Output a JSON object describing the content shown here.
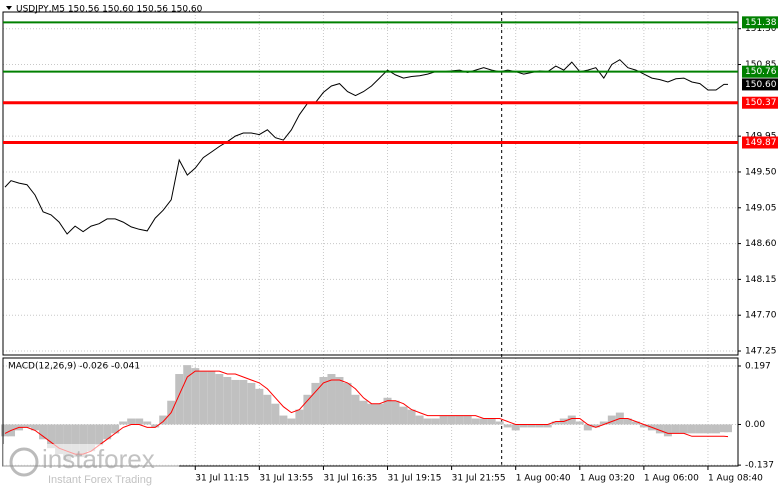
{
  "chart_data": [
    {
      "type": "line",
      "title": "USDJPY,M5  150.56 150.60 150.56 150.60",
      "color": "#000000",
      "grid": true,
      "xlim": [
        0,
        367
      ],
      "ylim": [
        147.2,
        151.51
      ],
      "yticks": [
        {
          "value": 151.3,
          "label": "151.30"
        },
        {
          "value": 150.85,
          "label": "150.85"
        },
        {
          "value": 149.95,
          "label": "149.95"
        },
        {
          "value": 149.5,
          "label": "149.50"
        },
        {
          "value": 149.05,
          "label": "149.05"
        },
        {
          "value": 148.6,
          "label": "148.60"
        },
        {
          "value": 148.15,
          "label": "148.15"
        },
        {
          "value": 147.7,
          "label": "147.70"
        },
        {
          "value": 147.25,
          "label": "147.25"
        }
      ],
      "separator_x": 249,
      "levels": [
        {
          "value": 151.38,
          "color": "#008000"
        },
        {
          "value": 150.76,
          "color": "#008000"
        },
        {
          "value": 150.37,
          "color": "#ff0000"
        },
        {
          "value": 149.87,
          "color": "#ff0000"
        }
      ],
      "last_price": {
        "value": 150.6,
        "label": "150.60"
      },
      "x": [
        1,
        4,
        8,
        12,
        16,
        20,
        24,
        28,
        32,
        36,
        40,
        44,
        48,
        52,
        56,
        60,
        64,
        68,
        72,
        76,
        80,
        84,
        88,
        92,
        96,
        100,
        104,
        108,
        112,
        116,
        120,
        124,
        128,
        132,
        136,
        140,
        144,
        148,
        152,
        156,
        160,
        164,
        168,
        172,
        176,
        180,
        184,
        188,
        192,
        196,
        200,
        204,
        208,
        212,
        216,
        220,
        224,
        228,
        232,
        236,
        240,
        244,
        248,
        252,
        256,
        260,
        264,
        268,
        272,
        276,
        280,
        284,
        288,
        292,
        296,
        300,
        304,
        308,
        312,
        316,
        320,
        324,
        328,
        332,
        336,
        340,
        344,
        348,
        352,
        356,
        360,
        362
      ],
      "values": [
        149.31,
        149.39,
        149.36,
        149.34,
        149.21,
        149.0,
        148.96,
        148.87,
        148.72,
        148.82,
        148.75,
        148.82,
        148.85,
        148.91,
        148.91,
        148.87,
        148.81,
        148.78,
        148.76,
        148.92,
        149.02,
        149.15,
        149.65,
        149.46,
        149.55,
        149.68,
        149.75,
        149.82,
        149.88,
        149.95,
        149.99,
        149.99,
        149.97,
        150.03,
        149.93,
        149.9,
        150.03,
        150.22,
        150.36,
        150.37,
        150.5,
        150.58,
        150.61,
        150.51,
        150.46,
        150.51,
        150.58,
        150.68,
        150.78,
        150.72,
        150.68,
        150.7,
        150.71,
        150.73,
        150.76,
        150.76,
        150.77,
        150.78,
        150.75,
        150.78,
        150.81,
        150.78,
        150.76,
        150.78,
        150.76,
        150.73,
        150.75,
        150.77,
        150.76,
        150.83,
        150.78,
        150.88,
        150.76,
        150.78,
        150.81,
        150.68,
        150.85,
        150.91,
        150.81,
        150.78,
        150.73,
        150.68,
        150.66,
        150.63,
        150.67,
        150.68,
        150.63,
        150.61,
        150.53,
        150.53,
        150.6,
        150.6
      ]
    },
    {
      "type": "combo",
      "title": "MACD(12,26,9) -0.026 -0.041",
      "grid": true,
      "xlim": [
        0,
        367
      ],
      "ylim": [
        -0.14,
        0.224
      ],
      "yticks": [
        0.197,
        {
          "value": 0,
          "label": "0.00"
        },
        -0.137
      ],
      "xticks": [
        {
          "value": 96,
          "label": "31 Jul 11:15"
        },
        {
          "value": 128,
          "label": "31 Jul 13:55"
        },
        {
          "value": 160,
          "label": "31 Jul 16:35"
        },
        {
          "value": 192,
          "label": "31 Jul 19:15"
        },
        {
          "value": 224,
          "label": "31 Jul 21:55"
        },
        {
          "value": 256,
          "label": "1 Aug 00:40"
        },
        {
          "value": 288,
          "label": "1 Aug 03:20"
        },
        {
          "value": 320,
          "label": "1 Aug 06:00"
        },
        {
          "value": 352,
          "label": "1 Aug 08:40"
        }
      ],
      "x": [
        1,
        4,
        8,
        12,
        16,
        20,
        24,
        28,
        32,
        36,
        40,
        44,
        48,
        52,
        56,
        60,
        64,
        68,
        72,
        76,
        80,
        84,
        88,
        92,
        96,
        100,
        104,
        108,
        112,
        116,
        120,
        124,
        128,
        132,
        136,
        140,
        144,
        148,
        152,
        156,
        160,
        164,
        168,
        172,
        176,
        180,
        184,
        188,
        192,
        196,
        200,
        204,
        208,
        212,
        216,
        220,
        224,
        228,
        232,
        236,
        240,
        244,
        248,
        252,
        256,
        260,
        264,
        268,
        272,
        276,
        280,
        284,
        288,
        292,
        296,
        300,
        304,
        308,
        312,
        316,
        320,
        324,
        328,
        332,
        336,
        340,
        344,
        348,
        352,
        356,
        360,
        362
      ],
      "series": [
        {
          "kind": "bar",
          "color": "#c0c0c0",
          "values": [
            -0.04,
            -0.04,
            -0.02,
            -0.01,
            -0.02,
            -0.05,
            -0.08,
            -0.1,
            -0.12,
            -0.11,
            -0.11,
            -0.09,
            -0.07,
            -0.05,
            -0.03,
            0.01,
            0.02,
            0.02,
            0.01,
            -0.01,
            0.03,
            0.08,
            0.17,
            0.2,
            0.19,
            0.18,
            0.18,
            0.17,
            0.16,
            0.15,
            0.15,
            0.14,
            0.12,
            0.1,
            0.07,
            0.03,
            0.02,
            0.05,
            0.1,
            0.14,
            0.16,
            0.17,
            0.16,
            0.14,
            0.1,
            0.08,
            0.07,
            0.07,
            0.09,
            0.08,
            0.06,
            0.05,
            0.03,
            0.02,
            0.02,
            0.03,
            0.03,
            0.03,
            0.03,
            0.02,
            0.02,
            0.02,
            0.01,
            -0.01,
            -0.02,
            -0.01,
            -0.01,
            -0.01,
            -0.01,
            0.01,
            0.02,
            0.03,
            0.01,
            -0.02,
            -0.01,
            0.01,
            0.03,
            0.04,
            0.02,
            0.01,
            -0.01,
            -0.02,
            -0.03,
            -0.04,
            -0.03,
            -0.03,
            -0.03,
            -0.03,
            -0.03,
            -0.03,
            -0.026,
            -0.026
          ]
        },
        {
          "kind": "line",
          "color": "#ff0000",
          "values": [
            -0.03,
            -0.02,
            -0.01,
            -0.01,
            -0.02,
            -0.04,
            -0.06,
            -0.08,
            -0.09,
            -0.1,
            -0.1,
            -0.09,
            -0.07,
            -0.05,
            -0.03,
            -0.01,
            0,
            0,
            -0.01,
            -0.01,
            0.01,
            0.04,
            0.1,
            0.16,
            0.18,
            0.18,
            0.18,
            0.18,
            0.17,
            0.17,
            0.16,
            0.15,
            0.14,
            0.12,
            0.09,
            0.06,
            0.04,
            0.05,
            0.08,
            0.11,
            0.14,
            0.15,
            0.15,
            0.14,
            0.12,
            0.09,
            0.07,
            0.07,
            0.08,
            0.08,
            0.07,
            0.05,
            0.04,
            0.03,
            0.03,
            0.03,
            0.03,
            0.03,
            0.03,
            0.03,
            0.02,
            0.02,
            0.02,
            0.01,
            0,
            0,
            0,
            0,
            0,
            0.01,
            0.01,
            0.02,
            0.02,
            0,
            -0.01,
            0,
            0.01,
            0.02,
            0.02,
            0.01,
            0,
            -0.01,
            -0.02,
            -0.03,
            -0.03,
            -0.03,
            -0.04,
            -0.04,
            -0.04,
            -0.04,
            -0.04,
            -0.041
          ]
        }
      ]
    }
  ],
  "watermark": {
    "brand": "instaforex",
    "tagline": "Instant Forex Trading"
  }
}
